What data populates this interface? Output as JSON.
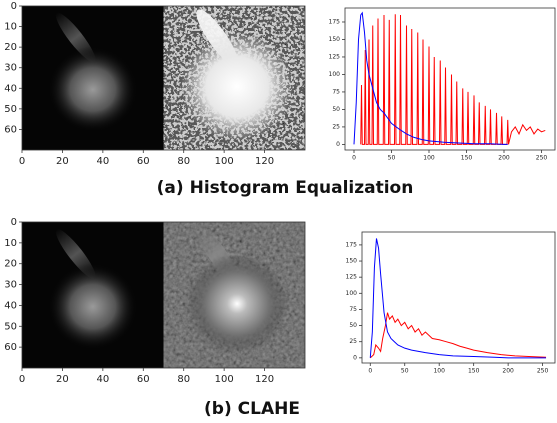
{
  "chart_data": [
    {
      "type": "image",
      "xlim": [
        0,
        140
      ],
      "ylim": [
        70,
        0
      ],
      "xticks": [
        0,
        20,
        40,
        60,
        80,
        100,
        120
      ],
      "yticks": [
        0,
        10,
        20,
        30,
        40,
        50,
        60
      ]
    },
    {
      "type": "line",
      "xlim": [
        -12,
        268
      ],
      "ylim": [
        -8,
        195
      ],
      "xticks": [
        0,
        50,
        100,
        150,
        200,
        250
      ],
      "yticks": [
        0,
        25,
        50,
        75,
        100,
        125,
        150,
        175
      ],
      "series": [
        {
          "color": "#ff0000",
          "x": [
            9,
            10,
            11,
            14,
            15,
            16,
            19,
            20,
            21,
            24,
            25,
            26,
            31,
            32,
            33,
            39,
            40,
            41,
            46,
            47,
            48,
            54,
            55,
            56,
            61,
            62,
            63,
            69,
            70,
            71,
            76,
            77,
            78,
            84,
            85,
            86,
            91,
            92,
            93,
            99,
            100,
            101,
            106,
            107,
            108,
            114,
            115,
            116,
            121,
            122,
            123,
            129,
            130,
            131,
            136,
            137,
            138,
            144,
            145,
            146,
            151,
            152,
            153,
            159,
            160,
            161,
            166,
            167,
            168,
            174,
            175,
            176,
            181,
            182,
            183,
            189,
            190,
            191,
            196,
            197,
            198,
            204,
            205,
            206,
            210,
            215,
            220,
            225,
            230,
            235,
            240,
            245,
            250,
            255
          ],
          "values": [
            0,
            85,
            0,
            0,
            135,
            0,
            0,
            150,
            0,
            0,
            170,
            0,
            0,
            180,
            0,
            0,
            185,
            0,
            0,
            178,
            0,
            0,
            186,
            0,
            0,
            185,
            0,
            0,
            170,
            0,
            0,
            165,
            0,
            0,
            160,
            0,
            0,
            150,
            0,
            0,
            140,
            0,
            0,
            125,
            0,
            0,
            120,
            0,
            0,
            110,
            0,
            0,
            100,
            0,
            0,
            90,
            0,
            0,
            80,
            0,
            0,
            75,
            0,
            0,
            70,
            0,
            0,
            60,
            0,
            0,
            55,
            0,
            0,
            50,
            0,
            0,
            45,
            0,
            0,
            40,
            0,
            0,
            35,
            0,
            18,
            25,
            15,
            28,
            20,
            25,
            15,
            22,
            18,
            20
          ]
        },
        {
          "color": "#0000ff",
          "x": [
            0,
            3,
            6,
            9,
            11,
            14,
            17,
            20,
            25,
            30,
            35,
            40,
            50,
            60,
            70,
            80,
            90,
            100,
            120,
            140,
            160,
            180,
            200,
            205
          ],
          "values": [
            0,
            60,
            150,
            185,
            188,
            160,
            120,
            100,
            80,
            60,
            50,
            45,
            30,
            22,
            15,
            10,
            7,
            5,
            3,
            2,
            1,
            1,
            0,
            0
          ]
        }
      ]
    },
    {
      "type": "image",
      "xlim": [
        0,
        140
      ],
      "ylim": [
        70,
        0
      ],
      "xticks": [
        0,
        20,
        40,
        60,
        80,
        100,
        120
      ],
      "yticks": [
        0,
        10,
        20,
        30,
        40,
        50,
        60
      ]
    },
    {
      "type": "line",
      "xlim": [
        -12,
        268
      ],
      "ylim": [
        -8,
        195
      ],
      "xticks": [
        0,
        50,
        100,
        150,
        200,
        250
      ],
      "yticks": [
        0,
        25,
        50,
        75,
        100,
        125,
        150,
        175
      ],
      "series": [
        {
          "color": "#ff0000",
          "x": [
            0,
            5,
            8,
            12,
            15,
            18,
            22,
            25,
            28,
            32,
            36,
            40,
            45,
            50,
            55,
            60,
            65,
            70,
            75,
            80,
            90,
            100,
            110,
            120,
            130,
            140,
            150,
            170,
            190,
            210,
            230,
            255
          ],
          "values": [
            0,
            5,
            20,
            15,
            10,
            30,
            50,
            70,
            60,
            65,
            55,
            60,
            50,
            55,
            45,
            50,
            40,
            45,
            35,
            40,
            30,
            28,
            25,
            22,
            18,
            15,
            12,
            8,
            5,
            3,
            2,
            1
          ]
        },
        {
          "color": "#0000ff",
          "x": [
            0,
            3,
            6,
            9,
            12,
            15,
            20,
            25,
            30,
            35,
            40,
            50,
            60,
            70,
            80,
            100,
            120,
            150,
            180,
            200,
            255
          ],
          "values": [
            0,
            40,
            140,
            185,
            170,
            130,
            70,
            40,
            30,
            25,
            20,
            15,
            12,
            10,
            8,
            5,
            3,
            2,
            1,
            0,
            0
          ]
        }
      ]
    }
  ],
  "captions": [
    "(a)  Histogram Equalization",
    "(b)  CLAHE"
  ]
}
